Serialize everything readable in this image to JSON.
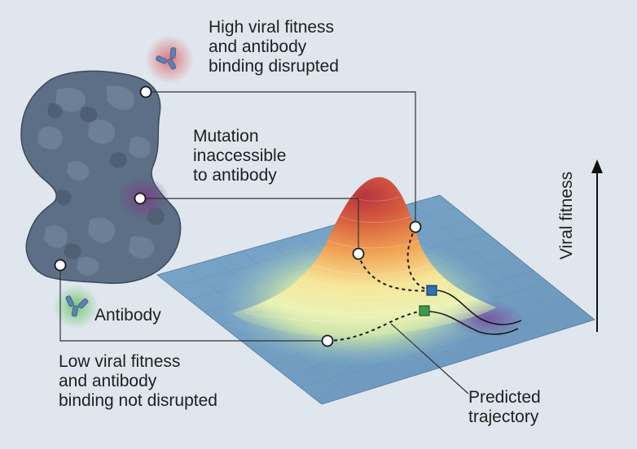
{
  "labels": {
    "high_fitness": [
      "High viral fitness",
      "and antibody",
      "binding disrupted"
    ],
    "inaccessible": [
      "Mutation",
      "inaccessible",
      "to antibody"
    ],
    "antibody": "Antibody",
    "low_fitness": [
      "Low viral fitness",
      "and antibody",
      "binding not disrupted"
    ],
    "trajectory": [
      "Predicted",
      "trajectory"
    ],
    "axis": "Viral fitness"
  },
  "colors": {
    "background": "#e0e6ee",
    "protein": "#5c6f86",
    "landscape_base": "#6f9cc0",
    "peak_top": "#c9404a",
    "peak_mid": "#f0a050",
    "peak_low": "#f4ec9c",
    "marker_blue": "#2f6fb5",
    "marker_green": "#3e9a4c",
    "connector": "#333333"
  }
}
